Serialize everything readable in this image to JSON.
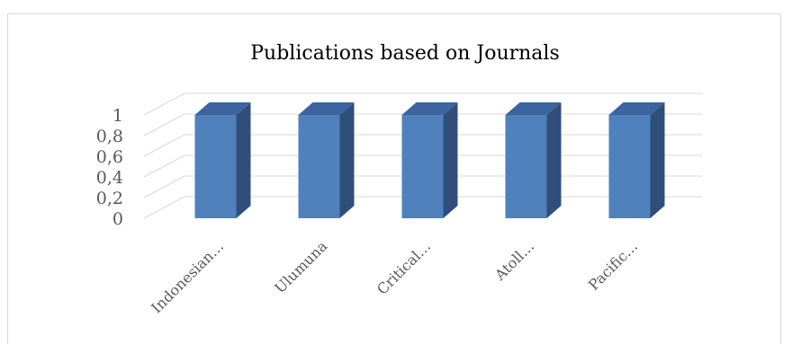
{
  "chart_data": {
    "type": "bar",
    "variant": "3d-column",
    "title": "Publications based on Journals",
    "categories": [
      "Indonesian…",
      "Ulumuna",
      "Critical…",
      "Atoll…",
      "Pacific…"
    ],
    "values": [
      1,
      1,
      1,
      1,
      1
    ],
    "y_ticks": [
      "0",
      "0,2",
      "0,4",
      "0,6",
      "0,8",
      "1"
    ],
    "ylim": [
      0,
      1
    ],
    "grid": true,
    "legend": "none",
    "colors": {
      "front": "#4f81bd",
      "side": "#2f4f7a",
      "top": "#3b64a0",
      "grid": "#d9d9d9",
      "text": "#595959"
    }
  }
}
